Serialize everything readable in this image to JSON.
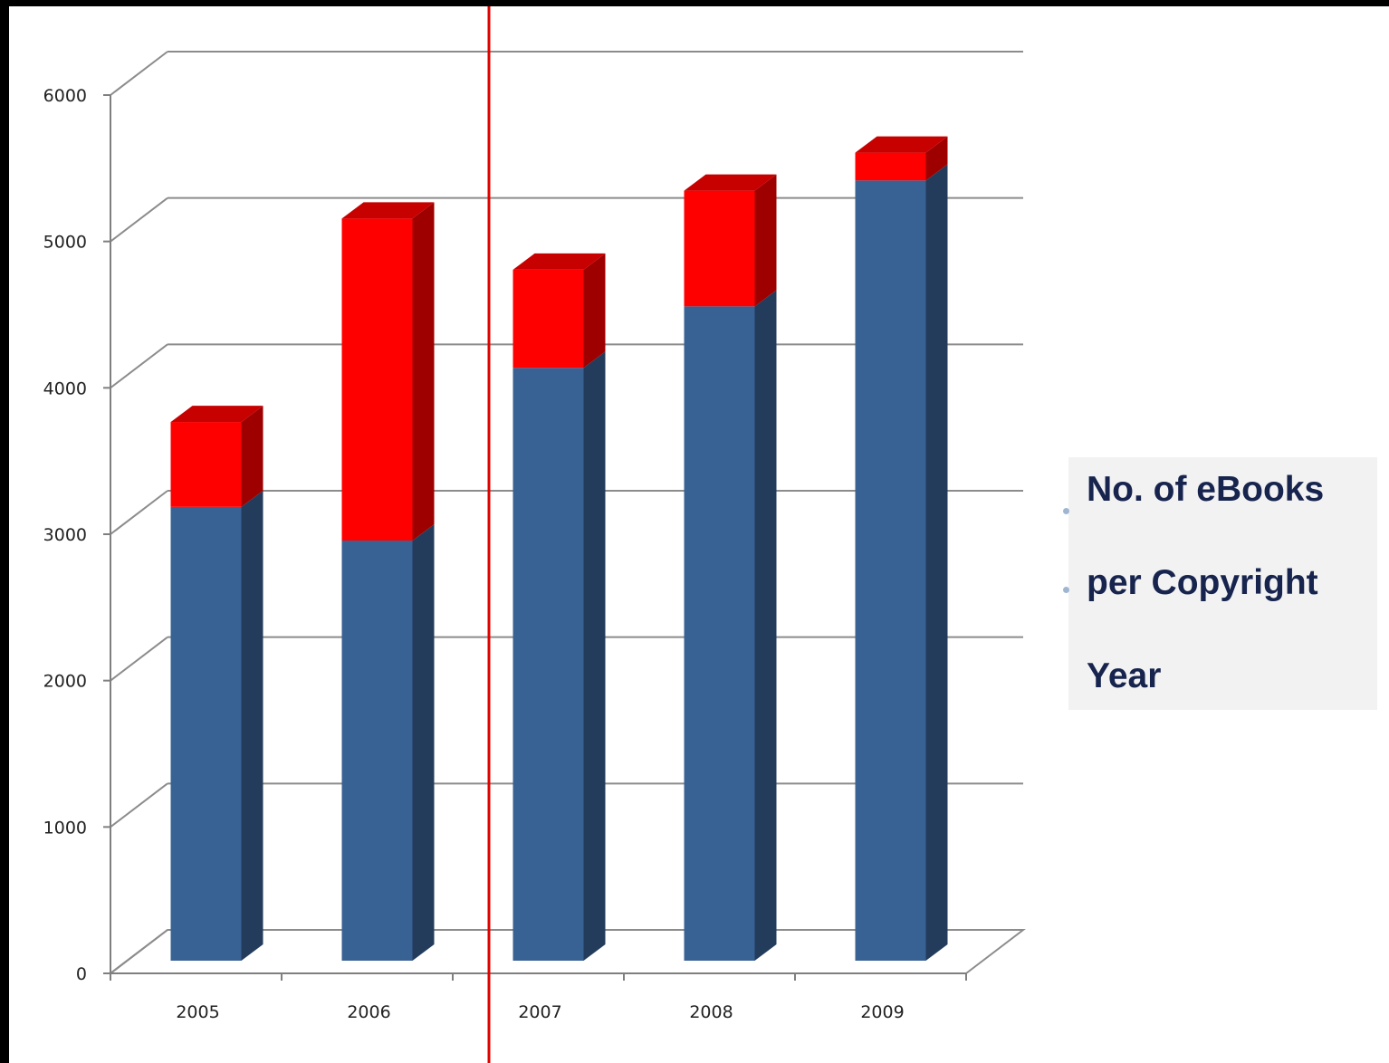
{
  "chart_data": {
    "type": "bar",
    "stacked": true,
    "three_d": true,
    "categories": [
      "2005",
      "2006",
      "2007",
      "2008",
      "2009"
    ],
    "series": [
      {
        "values": [
          3100,
          2870,
          4050,
          4470,
          5330
        ],
        "color": "#386194"
      },
      {
        "values": [
          580,
          2200,
          670,
          790,
          190
        ],
        "color": "#ff0000"
      }
    ],
    "y_ticks": [
      "0",
      "1000",
      "2000",
      "3000",
      "4000",
      "5000",
      "6000"
    ],
    "ylim": [
      0,
      6000
    ],
    "grid": true,
    "legend": {
      "lines": [
        "No. of eBooks",
        "per Copyright",
        "Year"
      ],
      "position": "right"
    },
    "divider_color": "#e00000"
  }
}
